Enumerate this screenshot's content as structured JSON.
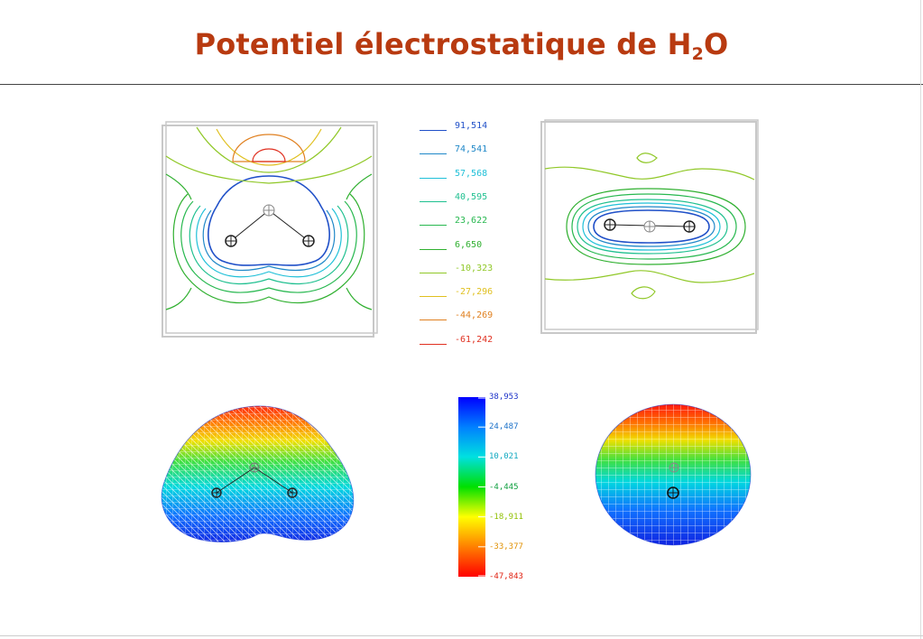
{
  "slide": {
    "title_main": "Potentiel électrostatique de H",
    "title_sub": "2",
    "title_tail": "O",
    "title_color": "#b83a10"
  },
  "contour_legend": {
    "levels": [
      {
        "label": "91,514",
        "color": "#2050c8"
      },
      {
        "label": "74,541",
        "color": "#2088c8"
      },
      {
        "label": "57,568",
        "color": "#20c0d8"
      },
      {
        "label": "40,595",
        "color": "#20c090"
      },
      {
        "label": "23,622",
        "color": "#28b850"
      },
      {
        "label": "6,650",
        "color": "#30b030"
      },
      {
        "label": "-10,323",
        "color": "#90c828"
      },
      {
        "label": "-27,296",
        "color": "#e0c020"
      },
      {
        "label": "-44,269",
        "color": "#e08020"
      },
      {
        "label": "-61,242",
        "color": "#e03020"
      }
    ]
  },
  "colorbar": {
    "ticks": [
      {
        "label": "38,953",
        "color": "#1a30c8"
      },
      {
        "label": "24,487",
        "color": "#1a70c8"
      },
      {
        "label": "10,021",
        "color": "#10a8c0"
      },
      {
        "label": "-4,445",
        "color": "#10a040"
      },
      {
        "label": "-18,911",
        "color": "#90c000"
      },
      {
        "label": "-33,377",
        "color": "#e09000"
      },
      {
        "label": "-47,843",
        "color": "#e02010"
      }
    ],
    "gradient": [
      "#ff0000",
      "#ff8000",
      "#ffff00",
      "#00e000",
      "#00e0e0",
      "#0080ff",
      "#0000ff"
    ]
  },
  "colors": {
    "rule": "#444444",
    "frame": "#c8c8c8",
    "atom": "#222222"
  }
}
